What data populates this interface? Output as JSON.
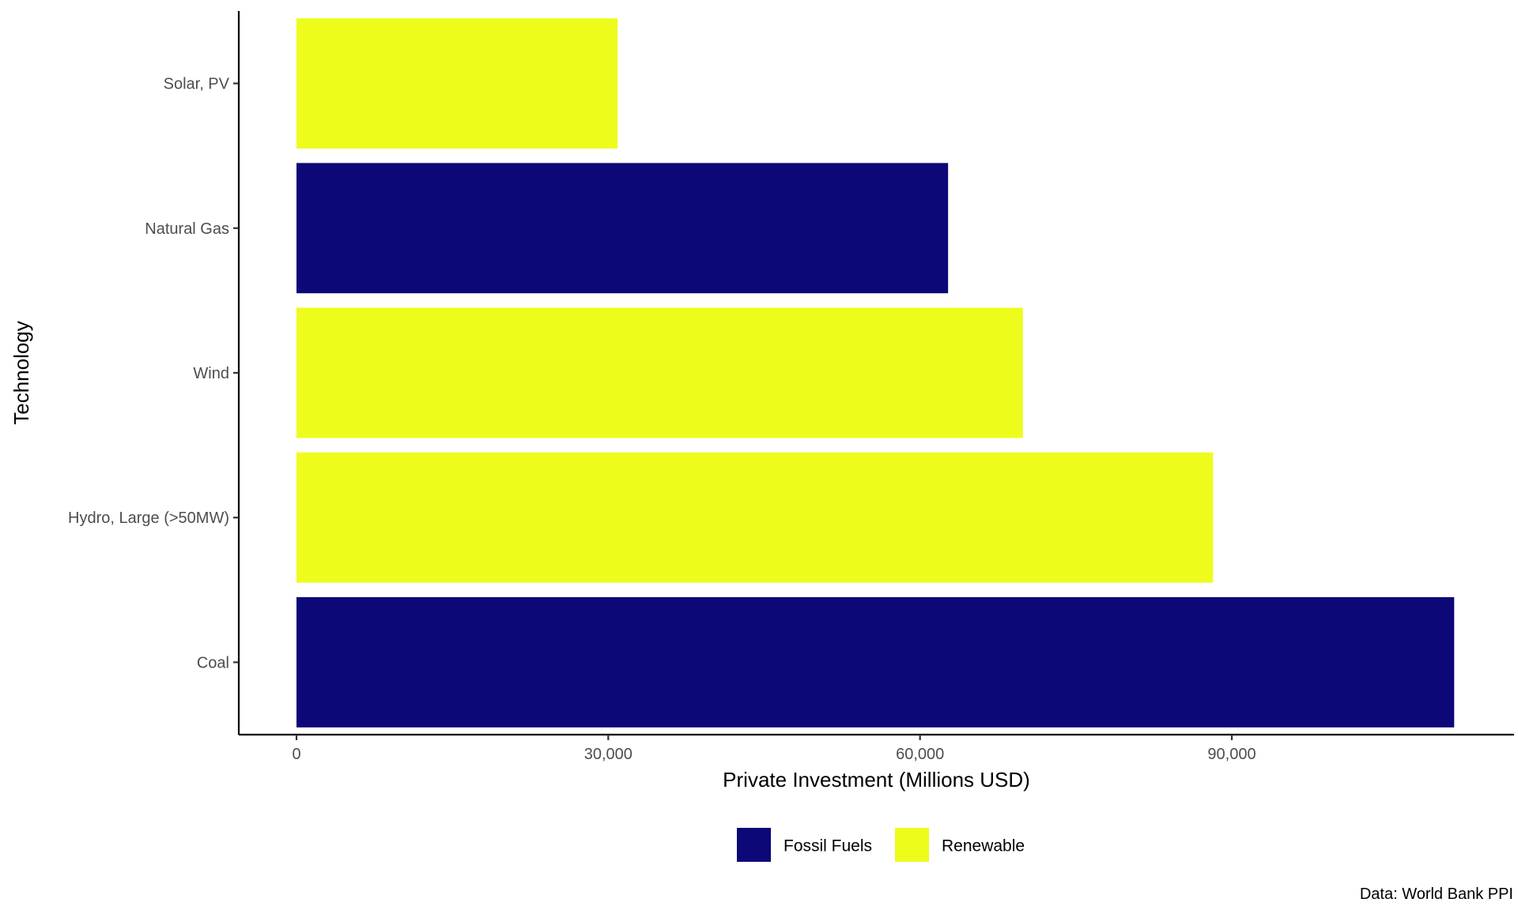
{
  "chart_data": {
    "type": "bar",
    "orientation": "horizontal",
    "categories": [
      "Solar, PV",
      "Natural Gas",
      "Wind",
      "Hydro, Large (>50MW)",
      "Coal"
    ],
    "values": [
      30900,
      62700,
      69900,
      88200,
      111400
    ],
    "groups": [
      "Renewable",
      "Fossil Fuels",
      "Renewable",
      "Renewable",
      "Fossil Fuels"
    ],
    "group_colors": {
      "Fossil Fuels": "#0d0877",
      "Renewable": "#eefc1c"
    },
    "xlabel": "Private Investment (Millions USD)",
    "ylabel": "Technology",
    "x_ticks": [
      0,
      30000,
      60000,
      90000
    ],
    "x_tick_labels": [
      "0",
      "30,000",
      "60,000",
      "90,000"
    ],
    "xlim": [
      0,
      116000
    ],
    "grid": false,
    "legend": {
      "position": "bottom",
      "entries": [
        {
          "label": "Fossil Fuels",
          "color": "#0d0877"
        },
        {
          "label": "Renewable",
          "color": "#eefc1c"
        }
      ]
    },
    "caption": "Data: World Bank PPI"
  }
}
